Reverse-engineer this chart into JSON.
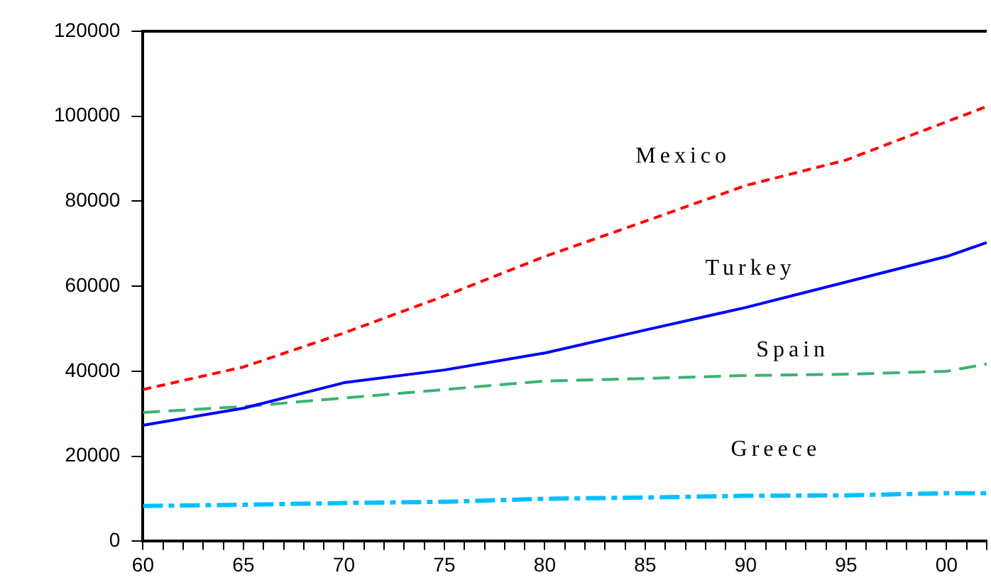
{
  "chart_data": {
    "type": "line",
    "x": [
      1960,
      1965,
      1970,
      1975,
      1980,
      1985,
      1990,
      1995,
      2000,
      2002
    ],
    "series": [
      {
        "name": "Mexico",
        "color": "#ff0000",
        "line_style": "dashed",
        "values": [
          35700,
          41000,
          49000,
          57700,
          67000,
          75300,
          83700,
          89700,
          98700,
          102300
        ]
      },
      {
        "name": "Turkey",
        "color": "#0000ff",
        "line_style": "solid",
        "values": [
          27300,
          31300,
          37300,
          40300,
          44300,
          49700,
          55000,
          61000,
          67000,
          70300
        ]
      },
      {
        "name": "Spain",
        "color": "#3cb371",
        "line_style": "dashed",
        "values": [
          30300,
          31700,
          33700,
          35700,
          37700,
          38300,
          39000,
          39300,
          40000,
          41700
        ]
      },
      {
        "name": "Greece",
        "color": "#00bfff",
        "line_style": "dashed",
        "values": [
          8300,
          8600,
          9000,
          9300,
          10000,
          10300,
          10700,
          10800,
          11300,
          11300
        ]
      }
    ],
    "xlim": [
      1960,
      2002
    ],
    "xticks": [
      {
        "value": 1960,
        "label": "60"
      },
      {
        "value": 1961,
        "label": null
      },
      {
        "value": 1962,
        "label": null
      },
      {
        "value": 1963,
        "label": null
      },
      {
        "value": 1964,
        "label": null
      },
      {
        "value": 1965,
        "label": "65"
      },
      {
        "value": 1966,
        "label": null
      },
      {
        "value": 1967,
        "label": null
      },
      {
        "value": 1968,
        "label": null
      },
      {
        "value": 1969,
        "label": null
      },
      {
        "value": 1970,
        "label": "70"
      },
      {
        "value": 1971,
        "label": null
      },
      {
        "value": 1972,
        "label": null
      },
      {
        "value": 1973,
        "label": null
      },
      {
        "value": 1974,
        "label": null
      },
      {
        "value": 1975,
        "label": "75"
      },
      {
        "value": 1976,
        "label": null
      },
      {
        "value": 1977,
        "label": null
      },
      {
        "value": 1978,
        "label": null
      },
      {
        "value": 1979,
        "label": null
      },
      {
        "value": 1980,
        "label": "80"
      },
      {
        "value": 1981,
        "label": null
      },
      {
        "value": 1982,
        "label": null
      },
      {
        "value": 1983,
        "label": null
      },
      {
        "value": 1984,
        "label": null
      },
      {
        "value": 1985,
        "label": "85"
      },
      {
        "value": 1986,
        "label": null
      },
      {
        "value": 1987,
        "label": null
      },
      {
        "value": 1988,
        "label": null
      },
      {
        "value": 1989,
        "label": null
      },
      {
        "value": 1990,
        "label": "90"
      },
      {
        "value": 1991,
        "label": null
      },
      {
        "value": 1992,
        "label": null
      },
      {
        "value": 1993,
        "label": null
      },
      {
        "value": 1994,
        "label": null
      },
      {
        "value": 1995,
        "label": "95"
      },
      {
        "value": 1996,
        "label": null
      },
      {
        "value": 1997,
        "label": null
      },
      {
        "value": 1998,
        "label": null
      },
      {
        "value": 1999,
        "label": null
      },
      {
        "value": 2000,
        "label": "00"
      },
      {
        "value": 2001,
        "label": null
      },
      {
        "value": 2002,
        "label": null
      }
    ],
    "ylim": [
      0,
      120000
    ],
    "yticks": [
      0,
      20000,
      40000,
      60000,
      80000,
      100000,
      120000
    ],
    "marker": "none",
    "grid": false,
    "legend": false
  }
}
